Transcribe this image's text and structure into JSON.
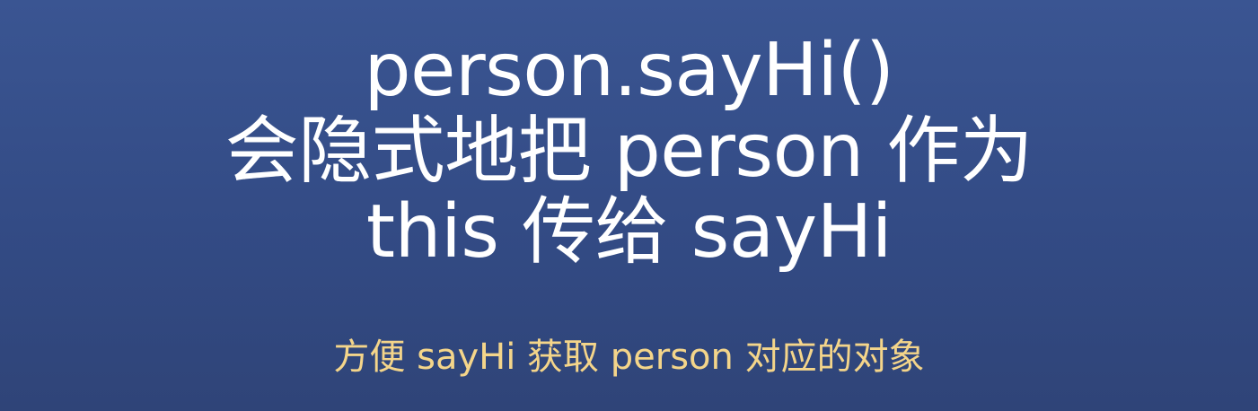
{
  "slide": {
    "headline": [
      "person.sayHi()",
      "会隐式地把 person 作为",
      "this 传给 sayHi"
    ],
    "subtitle": "方便 sayHi 获取 person 对应的对象"
  },
  "colors": {
    "background": "#334b85",
    "headline_text": "#ffffff",
    "subtitle_text": "#f4d58a"
  }
}
